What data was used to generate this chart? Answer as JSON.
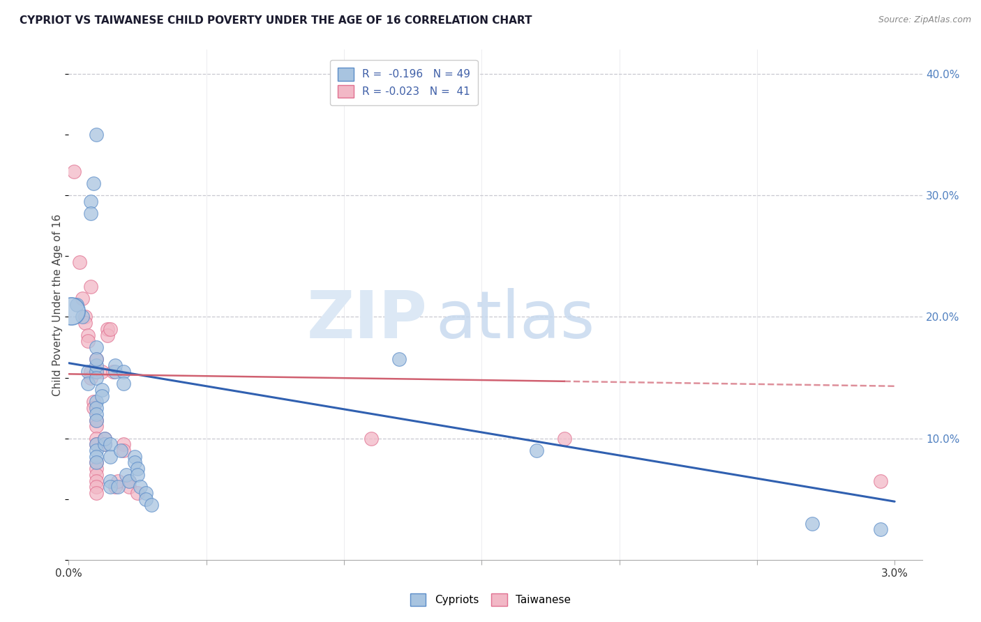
{
  "title": "CYPRIOT VS TAIWANESE CHILD POVERTY UNDER THE AGE OF 16 CORRELATION CHART",
  "source": "Source: ZipAtlas.com",
  "ylabel": "Child Poverty Under the Age of 16",
  "right_yticks": [
    "40.0%",
    "30.0%",
    "20.0%",
    "10.0%"
  ],
  "right_ytick_vals": [
    0.4,
    0.3,
    0.2,
    0.1
  ],
  "legend_r1": "R =  -0.196   N = 49",
  "legend_r2": "R = -0.023   N =  41",
  "cypriot_color": "#a8c4e0",
  "taiwanese_color": "#f2b8c6",
  "cypriot_edge_color": "#5b8cc8",
  "taiwanese_edge_color": "#e07090",
  "cypriot_line_color": "#3060b0",
  "taiwanese_line_color": "#d06070",
  "cypriot_points": [
    [
      0.0003,
      0.21
    ],
    [
      0.0005,
      0.2
    ],
    [
      0.0007,
      0.155
    ],
    [
      0.0007,
      0.145
    ],
    [
      0.0008,
      0.295
    ],
    [
      0.0008,
      0.285
    ],
    [
      0.0009,
      0.31
    ],
    [
      0.001,
      0.35
    ],
    [
      0.001,
      0.155
    ],
    [
      0.001,
      0.16
    ],
    [
      0.001,
      0.15
    ],
    [
      0.001,
      0.175
    ],
    [
      0.001,
      0.165
    ],
    [
      0.001,
      0.13
    ],
    [
      0.001,
      0.125
    ],
    [
      0.001,
      0.12
    ],
    [
      0.001,
      0.115
    ],
    [
      0.001,
      0.095
    ],
    [
      0.001,
      0.09
    ],
    [
      0.001,
      0.085
    ],
    [
      0.001,
      0.08
    ],
    [
      0.0012,
      0.14
    ],
    [
      0.0012,
      0.135
    ],
    [
      0.0013,
      0.095
    ],
    [
      0.0013,
      0.1
    ],
    [
      0.0015,
      0.095
    ],
    [
      0.0015,
      0.085
    ],
    [
      0.0015,
      0.065
    ],
    [
      0.0015,
      0.06
    ],
    [
      0.0017,
      0.155
    ],
    [
      0.0017,
      0.16
    ],
    [
      0.0018,
      0.06
    ],
    [
      0.0019,
      0.09
    ],
    [
      0.002,
      0.155
    ],
    [
      0.002,
      0.145
    ],
    [
      0.0021,
      0.07
    ],
    [
      0.0022,
      0.065
    ],
    [
      0.0024,
      0.085
    ],
    [
      0.0024,
      0.08
    ],
    [
      0.0025,
      0.075
    ],
    [
      0.0025,
      0.07
    ],
    [
      0.0026,
      0.06
    ],
    [
      0.0028,
      0.055
    ],
    [
      0.0028,
      0.05
    ],
    [
      0.003,
      0.045
    ],
    [
      0.012,
      0.165
    ],
    [
      0.017,
      0.09
    ],
    [
      0.027,
      0.03
    ],
    [
      0.0295,
      0.025
    ]
  ],
  "taiwanese_points": [
    [
      0.0002,
      0.32
    ],
    [
      0.0004,
      0.245
    ],
    [
      0.0005,
      0.215
    ],
    [
      0.0006,
      0.2
    ],
    [
      0.0006,
      0.195
    ],
    [
      0.0007,
      0.185
    ],
    [
      0.0007,
      0.18
    ],
    [
      0.0008,
      0.225
    ],
    [
      0.0008,
      0.155
    ],
    [
      0.0008,
      0.15
    ],
    [
      0.0009,
      0.13
    ],
    [
      0.0009,
      0.125
    ],
    [
      0.001,
      0.165
    ],
    [
      0.001,
      0.155
    ],
    [
      0.001,
      0.115
    ],
    [
      0.001,
      0.11
    ],
    [
      0.001,
      0.1
    ],
    [
      0.001,
      0.095
    ],
    [
      0.001,
      0.08
    ],
    [
      0.001,
      0.075
    ],
    [
      0.001,
      0.07
    ],
    [
      0.001,
      0.065
    ],
    [
      0.001,
      0.06
    ],
    [
      0.001,
      0.055
    ],
    [
      0.0012,
      0.155
    ],
    [
      0.0013,
      0.1
    ],
    [
      0.0013,
      0.095
    ],
    [
      0.0014,
      0.19
    ],
    [
      0.0014,
      0.185
    ],
    [
      0.0015,
      0.19
    ],
    [
      0.0016,
      0.155
    ],
    [
      0.0017,
      0.06
    ],
    [
      0.0018,
      0.065
    ],
    [
      0.002,
      0.095
    ],
    [
      0.002,
      0.09
    ],
    [
      0.0022,
      0.065
    ],
    [
      0.0022,
      0.06
    ],
    [
      0.0025,
      0.055
    ],
    [
      0.011,
      0.1
    ],
    [
      0.018,
      0.1
    ],
    [
      0.0295,
      0.065
    ]
  ],
  "cypriot_trendline": [
    [
      0.0,
      0.162
    ],
    [
      0.03,
      0.048
    ]
  ],
  "taiwanese_trendline": [
    [
      0.0,
      0.153
    ],
    [
      0.03,
      0.143
    ]
  ],
  "xlim": [
    0.0,
    0.031
  ],
  "ylim": [
    0.0,
    0.42
  ],
  "xtick_positions": [
    0.0,
    0.005,
    0.01,
    0.015,
    0.02,
    0.025,
    0.03
  ],
  "xtick_labels": [
    "0.0%",
    "",
    "",
    "",
    "",
    "",
    "3.0%"
  ]
}
